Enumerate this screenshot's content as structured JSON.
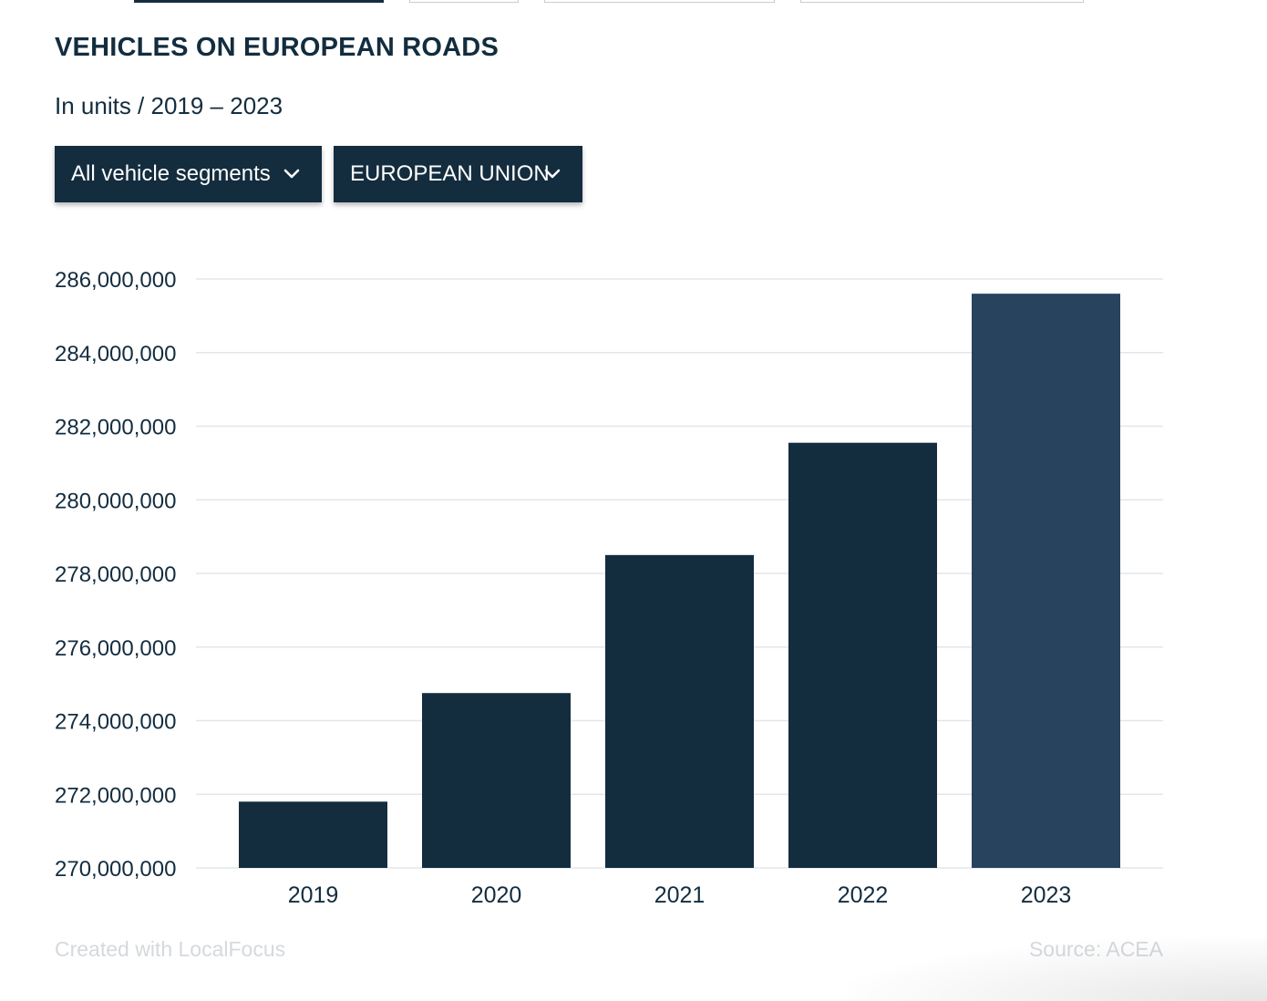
{
  "header": {
    "title": "VEHICLES ON EUROPEAN ROADS",
    "subtitle": "In units / 2019 – 2023"
  },
  "filters": {
    "segment": {
      "label": "All vehicle segments",
      "icon": "chevron-down-icon"
    },
    "region": {
      "label": "EUROPEAN UNION",
      "icon": "chevron-down-icon"
    }
  },
  "footer": {
    "credit": "Created with LocalFocus",
    "source": "Source:  ACEA"
  },
  "colors": {
    "primary": "#132d3f",
    "highlight": "#27435e",
    "grid": "#e3e6e8",
    "muted_text": "#d5d9dd"
  },
  "chart_data": {
    "type": "bar",
    "categories": [
      "2019",
      "2020",
      "2021",
      "2022",
      "2023"
    ],
    "values": [
      271800000,
      274750000,
      278500000,
      281550000,
      285600000
    ],
    "highlight_index": 4,
    "ylim": [
      270000000,
      286000000
    ],
    "yticks": [
      270000000,
      272000000,
      274000000,
      276000000,
      278000000,
      280000000,
      282000000,
      284000000,
      286000000
    ],
    "ytick_labels": [
      "270,000,000",
      "272,000,000",
      "274,000,000",
      "276,000,000",
      "278,000,000",
      "280,000,000",
      "282,000,000",
      "284,000,000",
      "286,000,000"
    ],
    "grid": true,
    "legend": "none",
    "xlabel": "",
    "ylabel": ""
  }
}
